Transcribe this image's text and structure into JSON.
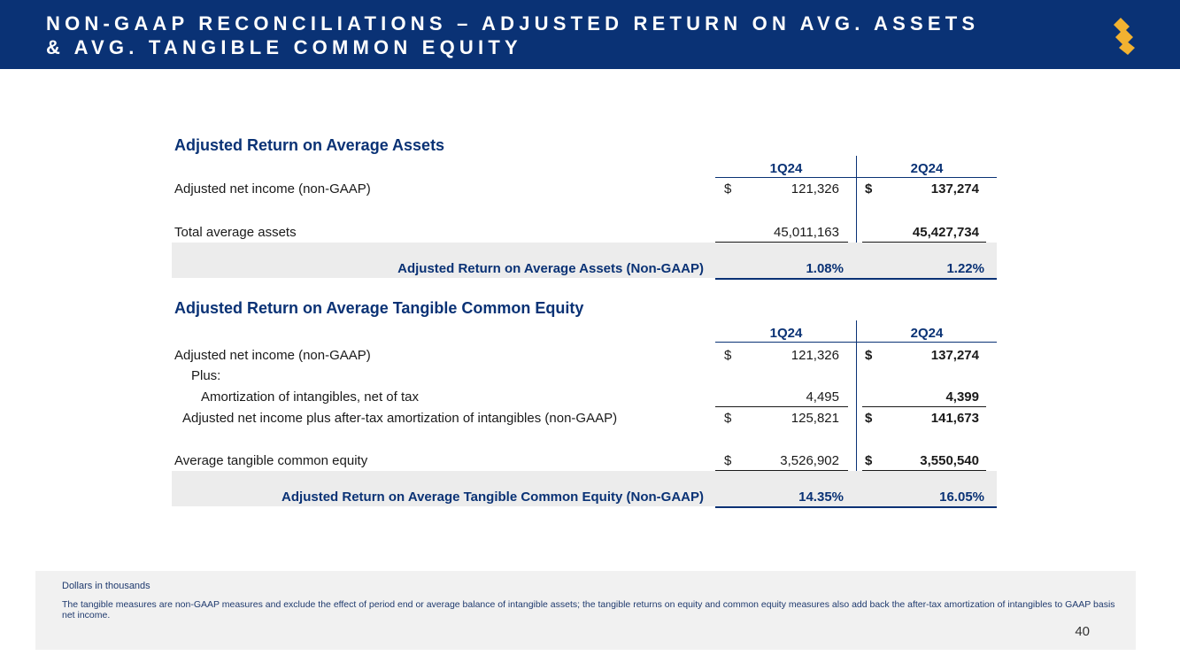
{
  "header": {
    "title_line1": "NON-GAAP RECONCILIATIONS – ADJUSTED RETURN ON AVG. ASSETS",
    "title_line2": "& AVG. TANGIBLE COMMON EQUITY",
    "brand_color": "#0a3275",
    "logo_icon": "brand-s-logo-icon"
  },
  "columns": [
    "1Q24",
    "2Q24"
  ],
  "assets_table": {
    "title": "Adjusted Return on Average Assets",
    "rows": [
      {
        "label": "Adjusted net income (non-GAAP)",
        "q1_dollar": "$",
        "q1": "121,326",
        "q2_dollar": "$",
        "q2": "137,274"
      },
      {
        "label": "Total average assets",
        "q1": "45,011,163",
        "q2": "45,427,734"
      }
    ],
    "result": {
      "label": "Adjusted Return on Average Assets (Non-GAAP)",
      "q1": "1.08%",
      "q2": "1.22%"
    }
  },
  "tce_table": {
    "title": "Adjusted Return on Average Tangible Common Equity",
    "rows": [
      {
        "label": "Adjusted net income (non-GAAP)",
        "q1_dollar": "$",
        "q1": "121,326",
        "q2_dollar": "$",
        "q2": "137,274"
      },
      {
        "label": "Plus:"
      },
      {
        "label": "Amortization of intangibles, net of tax",
        "q1": "4,495",
        "q2": "4,399"
      },
      {
        "label": "Adjusted net income plus after-tax amortization of intangibles (non-GAAP)",
        "q1_dollar": "$",
        "q1": "125,821",
        "q2_dollar": "$",
        "q2": "141,673"
      },
      {
        "label": "Average tangible common equity",
        "q1_dollar": "$",
        "q1": "3,526,902",
        "q2_dollar": "$",
        "q2": "3,550,540"
      }
    ],
    "result": {
      "label": "Adjusted Return on Average Tangible Common Equity (Non-GAAP)",
      "q1": "14.35%",
      "q2": "16.05%"
    }
  },
  "footer": {
    "units": "Dollars in thousands",
    "note": "The tangible measures are non-GAAP measures and exclude the effect of period end or average balance of intangible assets; the tangible returns on equity and common equity measures also add back the after-tax amortization of intangibles to GAAP basis net income.",
    "page_number": "40"
  }
}
